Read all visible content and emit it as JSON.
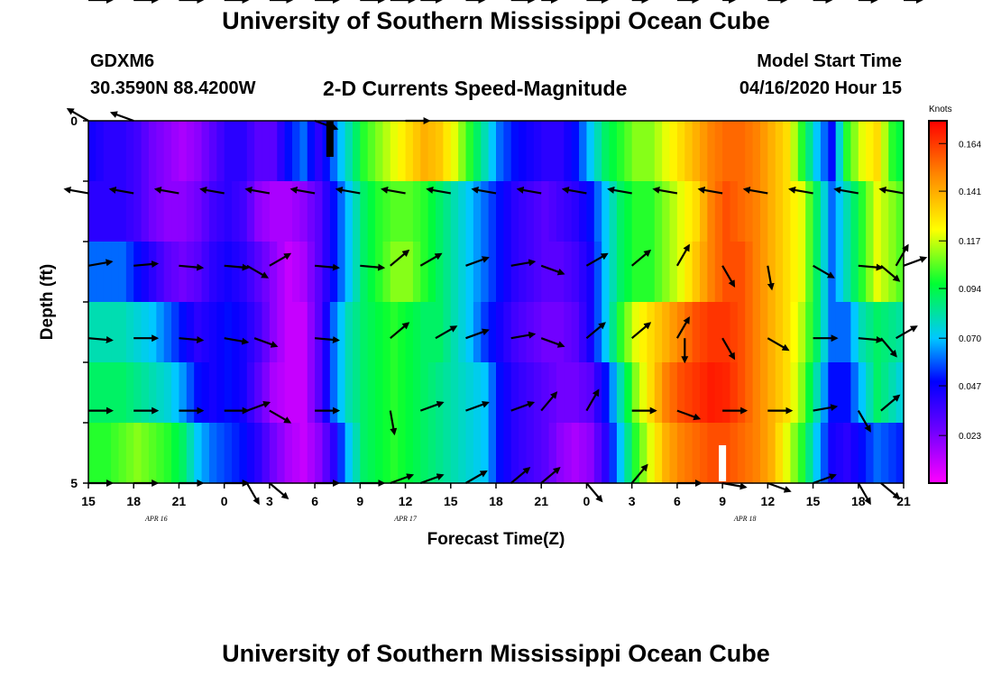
{
  "header": {
    "title": "University of Southern Mississippi Ocean Cube",
    "station_id": "GDXM6",
    "station_coords": "30.3590N 88.4200W",
    "plot_title": "2-D Currents Speed-Magnitude",
    "model_label": "Model Start Time",
    "model_time": "04/16/2020 Hour 15"
  },
  "footer": {
    "title": "University of Southern Mississippi Ocean Cube"
  },
  "colors": {
    "arrow": "#000000",
    "background": "#ffffff"
  },
  "chart_data": {
    "type": "heatmap",
    "title": "2-D Currents Speed-Magnitude",
    "xlabel": "Forecast Time(Z)",
    "ylabel": "Depth (ft)",
    "colorbar_label": "Knots",
    "colorbar_ticks": [
      "0.164",
      "0.141",
      "0.117",
      "0.094",
      "0.070",
      "0.047",
      "0.023"
    ],
    "colorbar_range": [
      0.0,
      0.175
    ],
    "x_tick_labels": [
      "15",
      "18",
      "21",
      "0",
      "3",
      "6",
      "9",
      "12",
      "15",
      "18",
      "21",
      "0",
      "3",
      "6",
      "9",
      "12",
      "15",
      "18",
      "21"
    ],
    "x_range_hours": [
      0,
      54
    ],
    "date_labels": [
      {
        "label": "APR  16",
        "hour": 4.5
      },
      {
        "label": "APR  17",
        "hour": 21
      },
      {
        "label": "APR  18",
        "hour": 43.5
      }
    ],
    "y_tick_labels": [
      "0",
      "5"
    ],
    "depth_range_ft": [
      0,
      5
    ],
    "depth_layers_ft": [
      0,
      1,
      2,
      3,
      4,
      5
    ],
    "speed_profile_hours": [
      0,
      1,
      2,
      3,
      4,
      5,
      6,
      7,
      8,
      9,
      10,
      11,
      12,
      13,
      14,
      15,
      16,
      17,
      18,
      19,
      20,
      21,
      22,
      23,
      24,
      25,
      26,
      27,
      28,
      29,
      30,
      31,
      32,
      33,
      34,
      35,
      36,
      37,
      38,
      39,
      40,
      41,
      42,
      43,
      44,
      45,
      46,
      47,
      48,
      49,
      50,
      51,
      52,
      53,
      54
    ],
    "speed_layers": [
      [
        0.045,
        0.04,
        0.04,
        0.035,
        0.025,
        0.02,
        0.015,
        0.02,
        0.03,
        0.04,
        0.04,
        0.03,
        0.03,
        0.05,
        0.06,
        0.04,
        0.06,
        0.08,
        0.1,
        0.11,
        0.12,
        0.13,
        0.14,
        0.135,
        0.12,
        0.1,
        0.08,
        0.06,
        0.05,
        0.045,
        0.04,
        0.04,
        0.05,
        0.07,
        0.09,
        0.1,
        0.11,
        0.11,
        0.12,
        0.13,
        0.14,
        0.15,
        0.155,
        0.155,
        0.15,
        0.14,
        0.13,
        0.1,
        0.07,
        0.05,
        0.1,
        0.12,
        0.13,
        0.1,
        0.09
      ],
      [
        0.04,
        0.04,
        0.04,
        0.035,
        0.025,
        0.02,
        0.02,
        0.025,
        0.035,
        0.04,
        0.035,
        0.02,
        0.015,
        0.015,
        0.02,
        0.03,
        0.05,
        0.07,
        0.09,
        0.1,
        0.105,
        0.105,
        0.1,
        0.09,
        0.08,
        0.07,
        0.06,
        0.05,
        0.04,
        0.035,
        0.03,
        0.035,
        0.04,
        0.05,
        0.07,
        0.09,
        0.1,
        0.1,
        0.11,
        0.12,
        0.13,
        0.15,
        0.16,
        0.155,
        0.15,
        0.14,
        0.13,
        0.12,
        0.09,
        0.06,
        0.08,
        0.1,
        0.12,
        0.11,
        0.1
      ],
      [
        0.06,
        0.06,
        0.06,
        0.05,
        0.04,
        0.03,
        0.025,
        0.03,
        0.04,
        0.045,
        0.04,
        0.03,
        0.02,
        0.01,
        0.015,
        0.03,
        0.05,
        0.07,
        0.09,
        0.1,
        0.11,
        0.11,
        0.1,
        0.09,
        0.08,
        0.07,
        0.06,
        0.05,
        0.04,
        0.035,
        0.03,
        0.03,
        0.035,
        0.045,
        0.07,
        0.09,
        0.1,
        0.1,
        0.11,
        0.12,
        0.135,
        0.15,
        0.16,
        0.16,
        0.15,
        0.14,
        0.13,
        0.12,
        0.09,
        0.06,
        0.08,
        0.1,
        0.12,
        0.11,
        0.1
      ],
      [
        0.08,
        0.08,
        0.08,
        0.075,
        0.07,
        0.06,
        0.05,
        0.04,
        0.045,
        0.05,
        0.045,
        0.035,
        0.02,
        0.01,
        0.01,
        0.03,
        0.06,
        0.08,
        0.09,
        0.095,
        0.1,
        0.095,
        0.09,
        0.09,
        0.08,
        0.07,
        0.055,
        0.045,
        0.035,
        0.03,
        0.025,
        0.025,
        0.03,
        0.045,
        0.07,
        0.1,
        0.12,
        0.13,
        0.14,
        0.15,
        0.16,
        0.165,
        0.165,
        0.16,
        0.15,
        0.14,
        0.13,
        0.115,
        0.09,
        0.06,
        0.06,
        0.08,
        0.09,
        0.085,
        0.08
      ],
      [
        0.09,
        0.09,
        0.09,
        0.085,
        0.08,
        0.075,
        0.065,
        0.05,
        0.045,
        0.05,
        0.045,
        0.03,
        0.015,
        0.01,
        0.01,
        0.03,
        0.06,
        0.08,
        0.09,
        0.095,
        0.1,
        0.095,
        0.09,
        0.085,
        0.08,
        0.075,
        0.07,
        0.05,
        0.04,
        0.035,
        0.03,
        0.025,
        0.025,
        0.03,
        0.05,
        0.08,
        0.11,
        0.13,
        0.15,
        0.16,
        0.165,
        0.17,
        0.168,
        0.16,
        0.15,
        0.14,
        0.13,
        0.11,
        0.08,
        0.05,
        0.05,
        0.07,
        0.09,
        0.08,
        0.07
      ],
      [
        0.1,
        0.1,
        0.105,
        0.11,
        0.105,
        0.1,
        0.09,
        0.07,
        0.06,
        0.055,
        0.05,
        0.04,
        0.025,
        0.015,
        0.01,
        0.02,
        0.04,
        0.07,
        0.09,
        0.095,
        0.1,
        0.095,
        0.09,
        0.085,
        0.08,
        0.075,
        0.07,
        0.05,
        0.04,
        0.035,
        0.03,
        0.02,
        0.015,
        0.02,
        0.04,
        0.07,
        0.1,
        0.12,
        0.14,
        0.15,
        0.155,
        0.16,
        0.16,
        0.155,
        0.15,
        0.14,
        0.12,
        0.1,
        0.07,
        0.045,
        0.04,
        0.05,
        0.06,
        0.055,
        0.05
      ]
    ],
    "missing_data": [
      {
        "hour": 16.0,
        "layer": 0,
        "color": "#000000"
      },
      {
        "hour": 42.0,
        "layer": 5,
        "color": "#ffffff"
      }
    ],
    "vectors": [
      [
        [
          0,
          150
        ],
        [
          3,
          160
        ],
        [
          15,
          -20
        ],
        [
          21,
          0
        ]
      ],
      [
        [
          0,
          170
        ],
        [
          3,
          170
        ],
        [
          6,
          170
        ],
        [
          9,
          170
        ],
        [
          12,
          170
        ],
        [
          15,
          170
        ],
        [
          18,
          170
        ],
        [
          21,
          170
        ],
        [
          24,
          170
        ],
        [
          27,
          170
        ],
        [
          30,
          170
        ],
        [
          33,
          170
        ],
        [
          36,
          170
        ],
        [
          39,
          170
        ],
        [
          42,
          170
        ],
        [
          45,
          170
        ],
        [
          48,
          170
        ],
        [
          51,
          170
        ],
        [
          54,
          170
        ]
      ],
      [
        [
          0,
          10
        ],
        [
          3,
          5
        ],
        [
          6,
          -5
        ],
        [
          9,
          -5
        ],
        [
          10.5,
          -30
        ],
        [
          12,
          30
        ],
        [
          15,
          -5
        ],
        [
          18,
          -5
        ],
        [
          20,
          40
        ],
        [
          22,
          30
        ],
        [
          25,
          20
        ],
        [
          28,
          10
        ],
        [
          30,
          -20
        ],
        [
          33,
          30
        ],
        [
          36,
          40
        ],
        [
          39,
          60
        ],
        [
          42,
          -60
        ],
        [
          45,
          -80
        ],
        [
          48,
          -30
        ],
        [
          51,
          -5
        ],
        [
          52.5,
          -40
        ],
        [
          53.5,
          60
        ],
        [
          54,
          20
        ]
      ],
      [
        [
          0,
          -5
        ],
        [
          3,
          0
        ],
        [
          6,
          -5
        ],
        [
          9,
          -10
        ],
        [
          11,
          -20
        ],
        [
          15,
          -5
        ],
        [
          20,
          40
        ],
        [
          23,
          30
        ],
        [
          25,
          20
        ],
        [
          28,
          10
        ],
        [
          30,
          -20
        ],
        [
          33,
          40
        ],
        [
          36,
          40
        ],
        [
          39,
          60
        ],
        [
          39.5,
          -90
        ],
        [
          42,
          -60
        ],
        [
          45,
          -30
        ],
        [
          48,
          0
        ],
        [
          51,
          -5
        ],
        [
          52.5,
          -50
        ],
        [
          53.5,
          30
        ]
      ],
      [
        [
          0,
          0
        ],
        [
          3,
          0
        ],
        [
          6,
          0
        ],
        [
          9,
          0
        ],
        [
          10.5,
          20
        ],
        [
          12,
          -30
        ],
        [
          15,
          0
        ],
        [
          20,
          -80
        ],
        [
          22,
          20
        ],
        [
          25,
          20
        ],
        [
          28,
          20
        ],
        [
          30,
          50
        ],
        [
          33,
          60
        ],
        [
          36,
          0
        ],
        [
          39,
          -20
        ],
        [
          42,
          0
        ],
        [
          45,
          0
        ],
        [
          48,
          10
        ],
        [
          51,
          -60
        ],
        [
          52.5,
          40
        ]
      ],
      [
        [
          0,
          0
        ],
        [
          3,
          0
        ],
        [
          6,
          0
        ],
        [
          9,
          0
        ],
        [
          10.5,
          -60
        ],
        [
          12,
          -40
        ],
        [
          15,
          0
        ],
        [
          18,
          0
        ],
        [
          20,
          20
        ],
        [
          22,
          20
        ],
        [
          25,
          30
        ],
        [
          28,
          40
        ],
        [
          30,
          40
        ],
        [
          33,
          -50
        ],
        [
          36,
          50
        ],
        [
          39,
          0
        ],
        [
          42,
          -10
        ],
        [
          45,
          -20
        ],
        [
          48,
          20
        ],
        [
          51,
          -60
        ],
        [
          52.5,
          -40
        ]
      ],
      [
        [
          0,
          -5
        ],
        [
          3,
          -5
        ],
        [
          6,
          0
        ],
        [
          9,
          -5
        ],
        [
          12,
          -20
        ],
        [
          15,
          0
        ],
        [
          18,
          -10
        ],
        [
          20,
          -5
        ],
        [
          22,
          30
        ],
        [
          25,
          40
        ],
        [
          28,
          20
        ],
        [
          30,
          -50
        ],
        [
          33,
          -30
        ],
        [
          36,
          -50
        ],
        [
          39,
          -30
        ],
        [
          42,
          -60
        ],
        [
          45,
          -40
        ],
        [
          48,
          -40
        ],
        [
          51,
          -40
        ],
        [
          54,
          -40
        ]
      ]
    ]
  }
}
